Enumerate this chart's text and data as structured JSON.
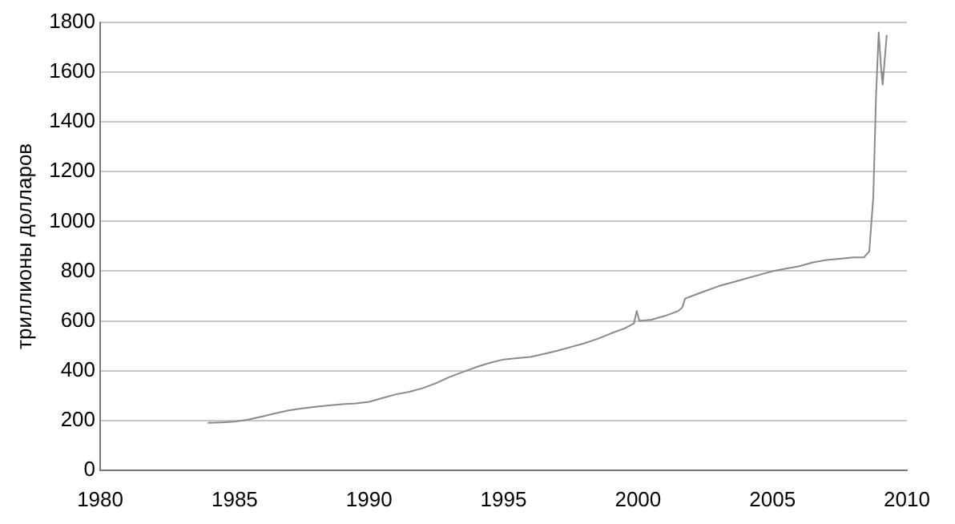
{
  "chart_data": {
    "type": "line",
    "ylabel": "триллионы долларов",
    "x": [
      1984,
      1984.5,
      1985,
      1985.5,
      1986,
      1986.5,
      1987,
      1987.5,
      1988,
      1988.5,
      1989,
      1989.5,
      1990,
      1990.5,
      1991,
      1991.5,
      1992,
      1992.5,
      1993,
      1993.5,
      1994,
      1994.5,
      1995,
      1995.5,
      1996,
      1996.5,
      1997,
      1997.5,
      1998,
      1998.5,
      1999,
      1999.5,
      1999.85,
      1999.95,
      2000.05,
      2000.5,
      2001,
      2001.5,
      2001.65,
      2001.75,
      2002,
      2002.5,
      2003,
      2003.5,
      2004,
      2004.5,
      2005,
      2005.5,
      2006,
      2006.5,
      2007,
      2007.5,
      2008,
      2008.4,
      2008.6,
      2008.75,
      2008.85,
      2008.95,
      2009.05,
      2009.1,
      2009.15,
      2009.25
    ],
    "series": [
      {
        "color": "#8a8a8a",
        "values": [
          190,
          192,
          195,
          203,
          215,
          228,
          240,
          248,
          255,
          260,
          265,
          268,
          275,
          290,
          305,
          315,
          330,
          350,
          375,
          395,
          415,
          432,
          445,
          450,
          455,
          467,
          480,
          495,
          510,
          528,
          550,
          570,
          590,
          640,
          600,
          605,
          620,
          640,
          655,
          690,
          700,
          720,
          740,
          755,
          770,
          785,
          800,
          810,
          820,
          835,
          845,
          850,
          855,
          855,
          880,
          1100,
          1500,
          1760,
          1600,
          1550,
          1620,
          1750
        ]
      }
    ],
    "xlim": [
      1980,
      2010
    ],
    "xticks": [
      1980,
      1985,
      1990,
      1995,
      2000,
      2005,
      2010
    ],
    "ylim": [
      0,
      1800
    ],
    "yticks": [
      0,
      200,
      400,
      600,
      800,
      1000,
      1200,
      1400,
      1600,
      1800
    ],
    "grid": "y",
    "legend": false,
    "marker": "none",
    "line_style": "solid"
  }
}
